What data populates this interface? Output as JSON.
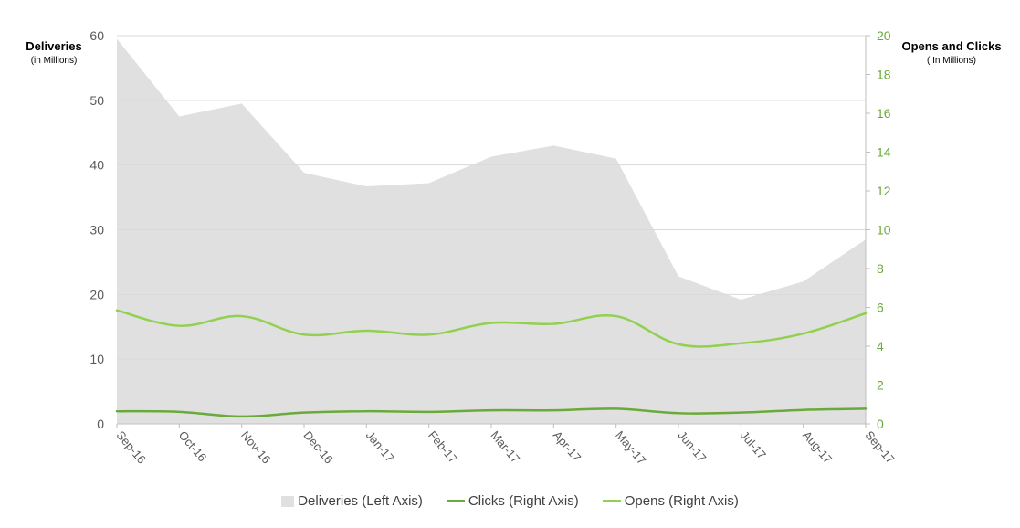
{
  "chart_data": {
    "type": "area",
    "categories": [
      "Sep-16",
      "Oct-16",
      "Nov-16",
      "Dec-16",
      "Jan-17",
      "Feb-17",
      "Mar-17",
      "Apr-17",
      "May-17",
      "Jun-17",
      "Jul-17",
      "Aug-17",
      "Sep-17"
    ],
    "left_axis": {
      "title": "Deliveries",
      "subtitle": "(in Millions)",
      "ylim": [
        0,
        60
      ],
      "ticks": [
        "0",
        "10",
        "20",
        "30",
        "40",
        "50",
        "60"
      ]
    },
    "right_axis": {
      "title": "Opens and Clicks",
      "subtitle": "( In Millions)",
      "ylim": [
        0,
        20
      ],
      "ticks": [
        "0",
        "2",
        "4",
        "6",
        "8",
        "10",
        "12",
        "14",
        "16",
        "18",
        "20"
      ]
    },
    "series": [
      {
        "name": "Deliveries (Left Axis)",
        "type": "area",
        "axis": "left",
        "color": "#e0e0e0",
        "values": [
          59.5,
          47.5,
          49.5,
          38.8,
          36.7,
          37.2,
          41.3,
          43.0,
          41.0,
          22.8,
          19.2,
          22.0,
          28.5
        ]
      },
      {
        "name": "Clicks (Right Axis)",
        "type": "line",
        "axis": "right",
        "color": "#6aaa3a",
        "values": [
          0.65,
          0.62,
          0.38,
          0.58,
          0.65,
          0.62,
          0.7,
          0.7,
          0.78,
          0.55,
          0.58,
          0.72,
          0.78
        ]
      },
      {
        "name": "Opens (Right Axis)",
        "type": "line",
        "axis": "right",
        "color": "#92d050",
        "values": [
          5.85,
          5.05,
          5.55,
          4.6,
          4.8,
          4.6,
          5.2,
          5.15,
          5.55,
          4.1,
          4.15,
          4.65,
          5.7
        ]
      }
    ],
    "grid": true,
    "legend_position": "bottom",
    "colors": {
      "left_tick_text": "#595959",
      "right_tick_text": "#6aaa3a",
      "gridline": "#d9d9d9",
      "axis_line": "#bfbfbf"
    }
  }
}
